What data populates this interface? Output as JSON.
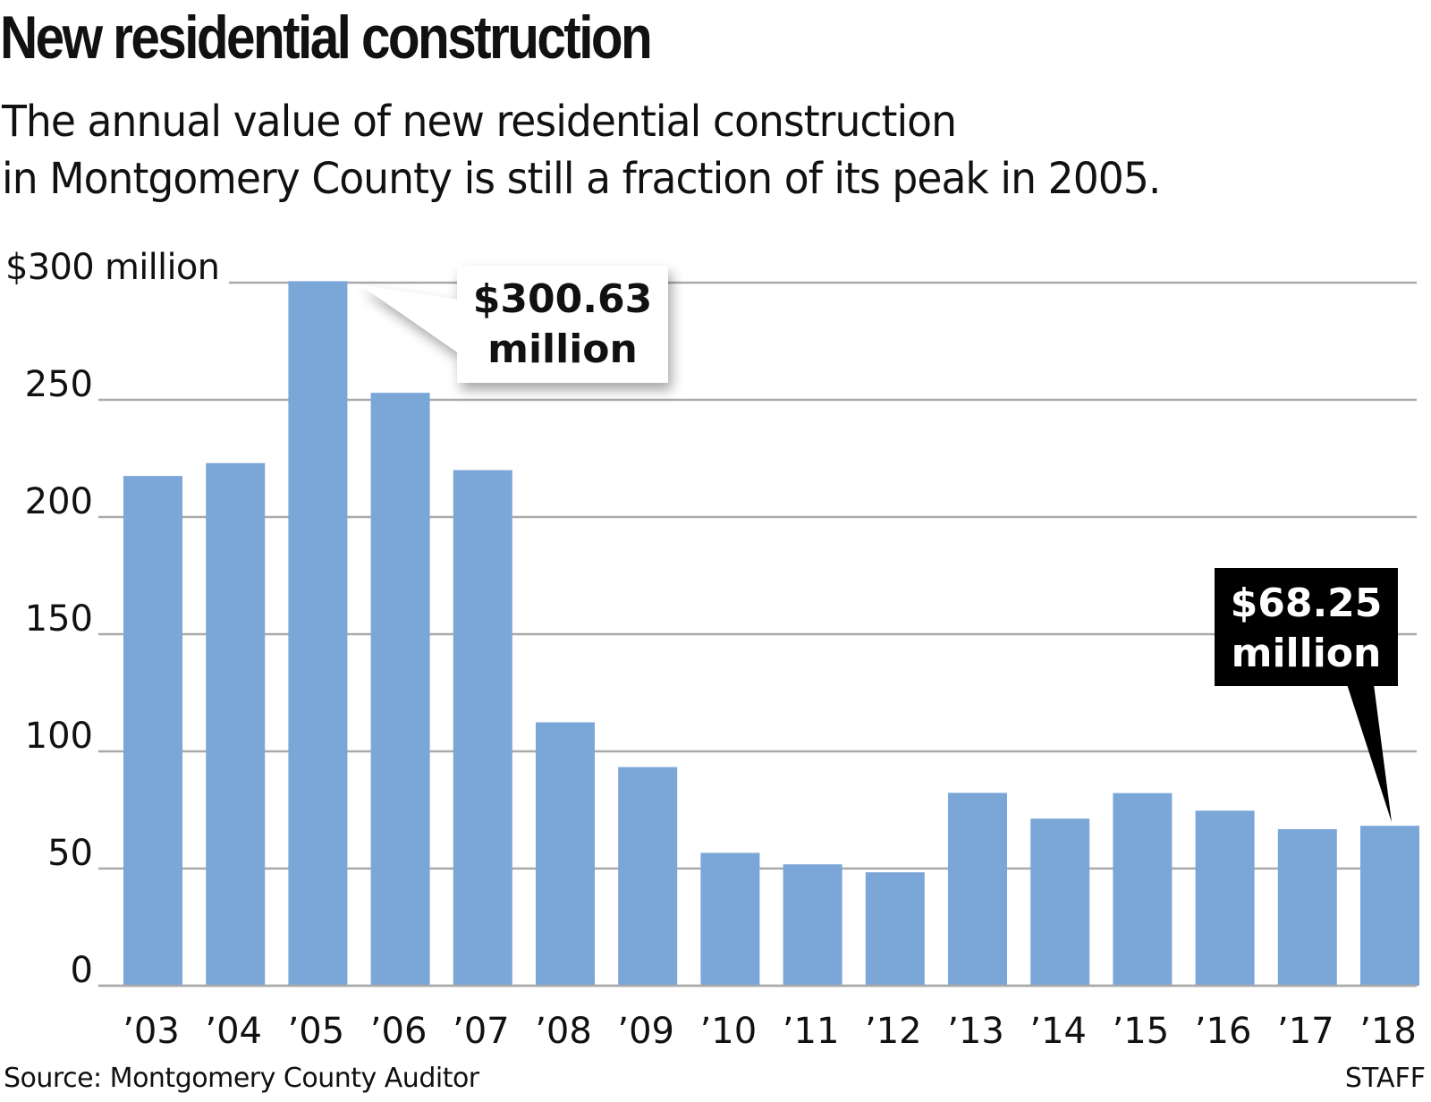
{
  "header": {
    "title": "New residential construction",
    "subtitle_lines": [
      "The annual value of new residential construction",
      "in Montgomery County is still a fraction of its peak in 2005."
    ]
  },
  "footer": {
    "source": "Source: Montgomery County Auditor",
    "credit": "STAFF"
  },
  "colors": {
    "bar": "#7ba6d8",
    "gridline": "#a9a9a9",
    "callout_light_bg": "#ffffff",
    "callout_dark_bg": "#000000"
  },
  "chart_data": {
    "type": "bar",
    "title": "New residential construction",
    "xlabel": "",
    "ylabel": "",
    "categories": [
      "’03",
      "’04",
      "’05",
      "’06",
      "’07",
      "’08",
      "’09",
      "’10",
      "’11",
      "’12",
      "’13",
      "’14",
      "’15",
      "’16",
      "’17",
      "’18"
    ],
    "values": [
      217.5,
      223,
      300.63,
      253,
      220,
      112.4,
      93.3,
      56.7,
      51.8,
      48.4,
      82.3,
      71.3,
      82.2,
      74.7,
      66.8,
      68.25
    ],
    "ylim": [
      0,
      300
    ],
    "yticks": [
      0,
      50,
      100,
      150,
      200,
      250,
      300
    ],
    "ytick_labels": [
      "0",
      "50",
      "100",
      "150",
      "200",
      "250",
      "$300 million"
    ],
    "grid": true,
    "legend": "none",
    "annotations": [
      {
        "category_index": 2,
        "lines": [
          "$300.63",
          "million"
        ],
        "style": "light"
      },
      {
        "category_index": 15,
        "lines": [
          "$68.25",
          "million"
        ],
        "style": "dark"
      }
    ]
  }
}
